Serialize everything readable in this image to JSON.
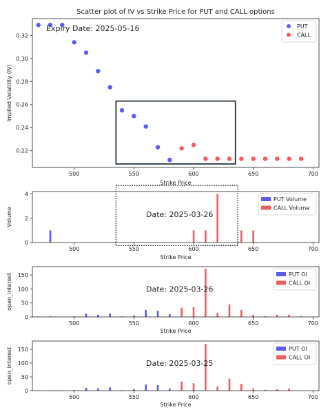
{
  "chart_data": [
    {
      "type": "scatter",
      "title": "Scatter plot of IV vs Strike Price for PUT and CALL options",
      "xlabel": "Strike Price",
      "ylabel": "Implied Volatility (IV)",
      "annotation": "Expiry Date: 2025-05-16",
      "xlim": [
        465,
        705
      ],
      "ylim": [
        0.2055,
        0.3345
      ],
      "xticks": [
        500,
        550,
        600,
        650,
        700
      ],
      "yticks": [
        0.22,
        0.24,
        0.26,
        0.28,
        0.3,
        0.32
      ],
      "legend_position": "top-right",
      "highlight_box": {
        "x": [
          535,
          635
        ],
        "y": [
          0.2085,
          0.263
        ]
      },
      "series": [
        {
          "name": "PUT",
          "color": "#5b5bf5",
          "points": [
            [
              470,
              0.329
            ],
            [
              480,
              0.329
            ],
            [
              490,
              0.329
            ],
            [
              500,
              0.314
            ],
            [
              510,
              0.305
            ],
            [
              520,
              0.289
            ],
            [
              530,
              0.275
            ],
            [
              540,
              0.255
            ],
            [
              550,
              0.25
            ],
            [
              560,
              0.241
            ],
            [
              570,
              0.223
            ],
            [
              580,
              0.212
            ]
          ]
        },
        {
          "name": "CALL",
          "color": "#f55b5b",
          "points": [
            [
              590,
              0.222
            ],
            [
              600,
              0.225
            ],
            [
              610,
              0.213
            ],
            [
              620,
              0.213
            ],
            [
              630,
              0.213
            ],
            [
              640,
              0.213
            ],
            [
              650,
              0.213
            ],
            [
              660,
              0.213
            ],
            [
              670,
              0.213
            ],
            [
              680,
              0.213
            ],
            [
              690,
              0.213
            ]
          ]
        }
      ]
    },
    {
      "type": "bar",
      "xlabel": "Strike Price",
      "ylabel": "Volume",
      "annotation": "Date: 2025-03-26",
      "xlim": [
        465,
        705
      ],
      "ylim": [
        0,
        4.2
      ],
      "xticks": [
        500,
        550,
        600,
        650,
        700
      ],
      "yticks": [
        0,
        2,
        4
      ],
      "legend_position": "top-right",
      "highlight_box": {
        "x": [
          535,
          637
        ],
        "y": [
          -0.25,
          4.7
        ]
      },
      "series": [
        {
          "name": "PUT Volume",
          "color": "#5b5bf5",
          "bars": [
            [
              480,
              1
            ]
          ]
        },
        {
          "name": "CALL Volume",
          "color": "#f55b5b",
          "bars": [
            [
              600,
              1
            ],
            [
              610,
              1
            ],
            [
              620,
              4
            ],
            [
              640,
              1
            ],
            [
              650,
              1
            ]
          ]
        }
      ]
    },
    {
      "type": "bar",
      "xlabel": "Strike Price",
      "ylabel": "open_interest",
      "annotation": "Date: 2025-03-26",
      "xlim": [
        465,
        705
      ],
      "ylim": [
        0,
        180
      ],
      "xticks": [
        500,
        550,
        600,
        650,
        700
      ],
      "yticks": [
        0,
        50,
        100,
        150
      ],
      "legend_position": "top-right",
      "series": [
        {
          "name": "PUT OI",
          "color": "#5b5bf5",
          "bars": [
            [
              470,
              1
            ],
            [
              480,
              2
            ],
            [
              490,
              1
            ],
            [
              500,
              2
            ],
            [
              510,
              12
            ],
            [
              520,
              8
            ],
            [
              530,
              12
            ],
            [
              540,
              2
            ],
            [
              550,
              5
            ],
            [
              560,
              25
            ],
            [
              570,
              22
            ],
            [
              580,
              10
            ]
          ]
        },
        {
          "name": "CALL OI",
          "color": "#f55b5b",
          "bars": [
            [
              590,
              33
            ],
            [
              600,
              35
            ],
            [
              610,
              173
            ],
            [
              620,
              15
            ],
            [
              630,
              45
            ],
            [
              640,
              25
            ],
            [
              650,
              8
            ],
            [
              660,
              3
            ],
            [
              670,
              8
            ],
            [
              680,
              8
            ],
            [
              690,
              2
            ]
          ]
        }
      ]
    },
    {
      "type": "bar",
      "xlabel": "Strike Price",
      "ylabel": "open_interest",
      "annotation": "Date: 2025-03-25",
      "xlim": [
        465,
        705
      ],
      "ylim": [
        0,
        180
      ],
      "xticks": [
        500,
        550,
        600,
        650,
        700
      ],
      "yticks": [
        0,
        50,
        100,
        150
      ],
      "legend_position": "top-right",
      "series": [
        {
          "name": "PUT OI",
          "color": "#5b5bf5",
          "bars": [
            [
              480,
              1
            ],
            [
              490,
              1
            ],
            [
              500,
              2
            ],
            [
              510,
              10
            ],
            [
              520,
              8
            ],
            [
              530,
              12
            ],
            [
              540,
              2
            ],
            [
              550,
              5
            ],
            [
              560,
              22
            ],
            [
              570,
              20
            ],
            [
              580,
              8
            ]
          ]
        },
        {
          "name": "CALL OI",
          "color": "#f55b5b",
          "bars": [
            [
              590,
              33
            ],
            [
              600,
              27
            ],
            [
              610,
              170
            ],
            [
              620,
              15
            ],
            [
              630,
              43
            ],
            [
              640,
              25
            ],
            [
              650,
              8
            ],
            [
              660,
              3
            ],
            [
              670,
              5
            ],
            [
              680,
              8
            ]
          ]
        }
      ]
    }
  ]
}
